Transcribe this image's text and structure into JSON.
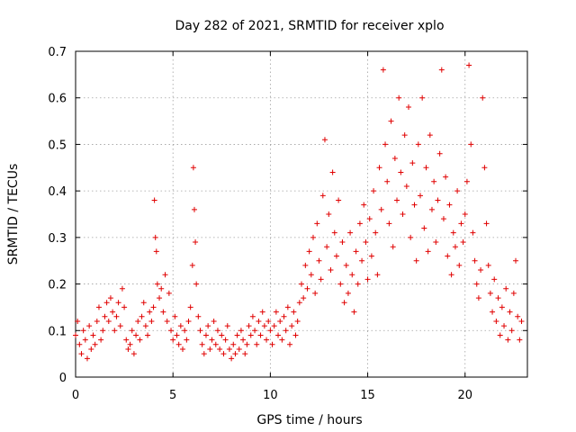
{
  "chart_data": {
    "type": "scatter",
    "title": "Day 282 of 2021, SRMTID for receiver xplo",
    "xlabel": "GPS time / hours",
    "ylabel": "SRMTID / TECUs",
    "xlim": [
      0,
      23.2
    ],
    "ylim": [
      0,
      0.7
    ],
    "xticks": [
      0,
      5,
      10,
      15,
      20
    ],
    "yticks": [
      0,
      0.1,
      0.2,
      0.3,
      0.4,
      0.5,
      0.6,
      0.7
    ],
    "grid": true,
    "marker": "+",
    "color": "#e00000",
    "series": [
      {
        "name": "SRMTID",
        "points": [
          [
            0.0,
            0.09
          ],
          [
            0.1,
            0.12
          ],
          [
            0.2,
            0.07
          ],
          [
            0.3,
            0.05
          ],
          [
            0.4,
            0.1
          ],
          [
            0.5,
            0.08
          ],
          [
            0.6,
            0.04
          ],
          [
            0.7,
            0.11
          ],
          [
            0.8,
            0.06
          ],
          [
            0.9,
            0.09
          ],
          [
            1.0,
            0.07
          ],
          [
            1.1,
            0.12
          ],
          [
            1.2,
            0.15
          ],
          [
            1.3,
            0.08
          ],
          [
            1.4,
            0.1
          ],
          [
            1.5,
            0.13
          ],
          [
            1.6,
            0.16
          ],
          [
            1.7,
            0.12
          ],
          [
            1.8,
            0.17
          ],
          [
            1.9,
            0.14
          ],
          [
            2.0,
            0.1
          ],
          [
            2.1,
            0.13
          ],
          [
            2.2,
            0.16
          ],
          [
            2.3,
            0.11
          ],
          [
            2.4,
            0.19
          ],
          [
            2.5,
            0.15
          ],
          [
            2.6,
            0.08
          ],
          [
            2.7,
            0.06
          ],
          [
            2.8,
            0.07
          ],
          [
            2.9,
            0.1
          ],
          [
            3.0,
            0.05
          ],
          [
            3.1,
            0.09
          ],
          [
            3.2,
            0.12
          ],
          [
            3.3,
            0.08
          ],
          [
            3.4,
            0.13
          ],
          [
            3.5,
            0.16
          ],
          [
            3.6,
            0.11
          ],
          [
            3.7,
            0.09
          ],
          [
            3.8,
            0.14
          ],
          [
            3.9,
            0.12
          ],
          [
            4.0,
            0.15
          ],
          [
            4.05,
            0.38
          ],
          [
            4.1,
            0.3
          ],
          [
            4.15,
            0.27
          ],
          [
            4.2,
            0.2
          ],
          [
            4.3,
            0.17
          ],
          [
            4.4,
            0.19
          ],
          [
            4.5,
            0.14
          ],
          [
            4.6,
            0.22
          ],
          [
            4.7,
            0.12
          ],
          [
            4.8,
            0.18
          ],
          [
            4.9,
            0.1
          ],
          [
            5.0,
            0.08
          ],
          [
            5.1,
            0.13
          ],
          [
            5.2,
            0.09
          ],
          [
            5.3,
            0.07
          ],
          [
            5.4,
            0.11
          ],
          [
            5.5,
            0.06
          ],
          [
            5.6,
            0.1
          ],
          [
            5.7,
            0.08
          ],
          [
            5.8,
            0.12
          ],
          [
            5.9,
            0.15
          ],
          [
            6.0,
            0.24
          ],
          [
            6.05,
            0.45
          ],
          [
            6.1,
            0.36
          ],
          [
            6.15,
            0.29
          ],
          [
            6.2,
            0.2
          ],
          [
            6.3,
            0.13
          ],
          [
            6.4,
            0.1
          ],
          [
            6.5,
            0.07
          ],
          [
            6.6,
            0.05
          ],
          [
            6.7,
            0.09
          ],
          [
            6.8,
            0.11
          ],
          [
            6.9,
            0.06
          ],
          [
            7.0,
            0.08
          ],
          [
            7.1,
            0.12
          ],
          [
            7.2,
            0.07
          ],
          [
            7.3,
            0.1
          ],
          [
            7.4,
            0.06
          ],
          [
            7.5,
            0.09
          ],
          [
            7.6,
            0.05
          ],
          [
            7.7,
            0.08
          ],
          [
            7.8,
            0.11
          ],
          [
            7.9,
            0.06
          ],
          [
            8.0,
            0.04
          ],
          [
            8.1,
            0.07
          ],
          [
            8.2,
            0.05
          ],
          [
            8.3,
            0.09
          ],
          [
            8.4,
            0.06
          ],
          [
            8.5,
            0.1
          ],
          [
            8.6,
            0.08
          ],
          [
            8.7,
            0.05
          ],
          [
            8.8,
            0.07
          ],
          [
            8.9,
            0.11
          ],
          [
            9.0,
            0.09
          ],
          [
            9.1,
            0.13
          ],
          [
            9.2,
            0.1
          ],
          [
            9.3,
            0.07
          ],
          [
            9.4,
            0.12
          ],
          [
            9.5,
            0.09
          ],
          [
            9.6,
            0.14
          ],
          [
            9.7,
            0.11
          ],
          [
            9.8,
            0.08
          ],
          [
            9.9,
            0.12
          ],
          [
            10.0,
            0.1
          ],
          [
            10.1,
            0.07
          ],
          [
            10.2,
            0.11
          ],
          [
            10.3,
            0.14
          ],
          [
            10.4,
            0.09
          ],
          [
            10.5,
            0.12
          ],
          [
            10.6,
            0.08
          ],
          [
            10.7,
            0.13
          ],
          [
            10.8,
            0.1
          ],
          [
            10.9,
            0.15
          ],
          [
            11.0,
            0.07
          ],
          [
            11.1,
            0.11
          ],
          [
            11.2,
            0.14
          ],
          [
            11.3,
            0.09
          ],
          [
            11.4,
            0.12
          ],
          [
            11.5,
            0.16
          ],
          [
            11.6,
            0.2
          ],
          [
            11.7,
            0.17
          ],
          [
            11.8,
            0.24
          ],
          [
            11.9,
            0.19
          ],
          [
            12.0,
            0.27
          ],
          [
            12.1,
            0.22
          ],
          [
            12.2,
            0.3
          ],
          [
            12.3,
            0.18
          ],
          [
            12.4,
            0.33
          ],
          [
            12.5,
            0.25
          ],
          [
            12.6,
            0.21
          ],
          [
            12.7,
            0.39
          ],
          [
            12.8,
            0.51
          ],
          [
            12.9,
            0.28
          ],
          [
            13.0,
            0.35
          ],
          [
            13.1,
            0.23
          ],
          [
            13.2,
            0.44
          ],
          [
            13.3,
            0.31
          ],
          [
            13.4,
            0.26
          ],
          [
            13.5,
            0.38
          ],
          [
            13.6,
            0.2
          ],
          [
            13.7,
            0.29
          ],
          [
            13.8,
            0.16
          ],
          [
            13.9,
            0.24
          ],
          [
            14.0,
            0.18
          ],
          [
            14.1,
            0.31
          ],
          [
            14.2,
            0.22
          ],
          [
            14.3,
            0.14
          ],
          [
            14.4,
            0.27
          ],
          [
            14.5,
            0.2
          ],
          [
            14.6,
            0.33
          ],
          [
            14.7,
            0.25
          ],
          [
            14.8,
            0.37
          ],
          [
            14.9,
            0.29
          ],
          [
            15.0,
            0.21
          ],
          [
            15.1,
            0.34
          ],
          [
            15.2,
            0.26
          ],
          [
            15.3,
            0.4
          ],
          [
            15.4,
            0.31
          ],
          [
            15.5,
            0.22
          ],
          [
            15.6,
            0.45
          ],
          [
            15.7,
            0.36
          ],
          [
            15.8,
            0.66
          ],
          [
            15.9,
            0.5
          ],
          [
            16.0,
            0.42
          ],
          [
            16.1,
            0.33
          ],
          [
            16.2,
            0.55
          ],
          [
            16.3,
            0.28
          ],
          [
            16.4,
            0.47
          ],
          [
            16.5,
            0.38
          ],
          [
            16.6,
            0.6
          ],
          [
            16.7,
            0.44
          ],
          [
            16.8,
            0.35
          ],
          [
            16.9,
            0.52
          ],
          [
            17.0,
            0.41
          ],
          [
            17.1,
            0.58
          ],
          [
            17.2,
            0.3
          ],
          [
            17.3,
            0.46
          ],
          [
            17.4,
            0.37
          ],
          [
            17.5,
            0.25
          ],
          [
            17.6,
            0.5
          ],
          [
            17.7,
            0.39
          ],
          [
            17.8,
            0.6
          ],
          [
            17.9,
            0.32
          ],
          [
            18.0,
            0.45
          ],
          [
            18.1,
            0.27
          ],
          [
            18.2,
            0.52
          ],
          [
            18.3,
            0.36
          ],
          [
            18.4,
            0.42
          ],
          [
            18.5,
            0.29
          ],
          [
            18.6,
            0.38
          ],
          [
            18.7,
            0.48
          ],
          [
            18.8,
            0.66
          ],
          [
            18.9,
            0.34
          ],
          [
            19.0,
            0.43
          ],
          [
            19.1,
            0.26
          ],
          [
            19.2,
            0.37
          ],
          [
            19.3,
            0.22
          ],
          [
            19.4,
            0.31
          ],
          [
            19.5,
            0.28
          ],
          [
            19.6,
            0.4
          ],
          [
            19.7,
            0.24
          ],
          [
            19.8,
            0.33
          ],
          [
            19.9,
            0.29
          ],
          [
            20.0,
            0.35
          ],
          [
            20.1,
            0.42
          ],
          [
            20.2,
            0.67
          ],
          [
            20.3,
            0.5
          ],
          [
            20.4,
            0.31
          ],
          [
            20.5,
            0.25
          ],
          [
            20.6,
            0.2
          ],
          [
            20.7,
            0.17
          ],
          [
            20.8,
            0.23
          ],
          [
            20.9,
            0.6
          ],
          [
            21.0,
            0.45
          ],
          [
            21.1,
            0.33
          ],
          [
            21.2,
            0.24
          ],
          [
            21.3,
            0.18
          ],
          [
            21.4,
            0.14
          ],
          [
            21.5,
            0.21
          ],
          [
            21.6,
            0.12
          ],
          [
            21.7,
            0.17
          ],
          [
            21.8,
            0.09
          ],
          [
            21.9,
            0.15
          ],
          [
            22.0,
            0.11
          ],
          [
            22.1,
            0.19
          ],
          [
            22.2,
            0.08
          ],
          [
            22.3,
            0.14
          ],
          [
            22.4,
            0.1
          ],
          [
            22.5,
            0.18
          ],
          [
            22.6,
            0.25
          ],
          [
            22.7,
            0.13
          ],
          [
            22.8,
            0.08
          ],
          [
            22.9,
            0.12
          ]
        ]
      }
    ]
  }
}
